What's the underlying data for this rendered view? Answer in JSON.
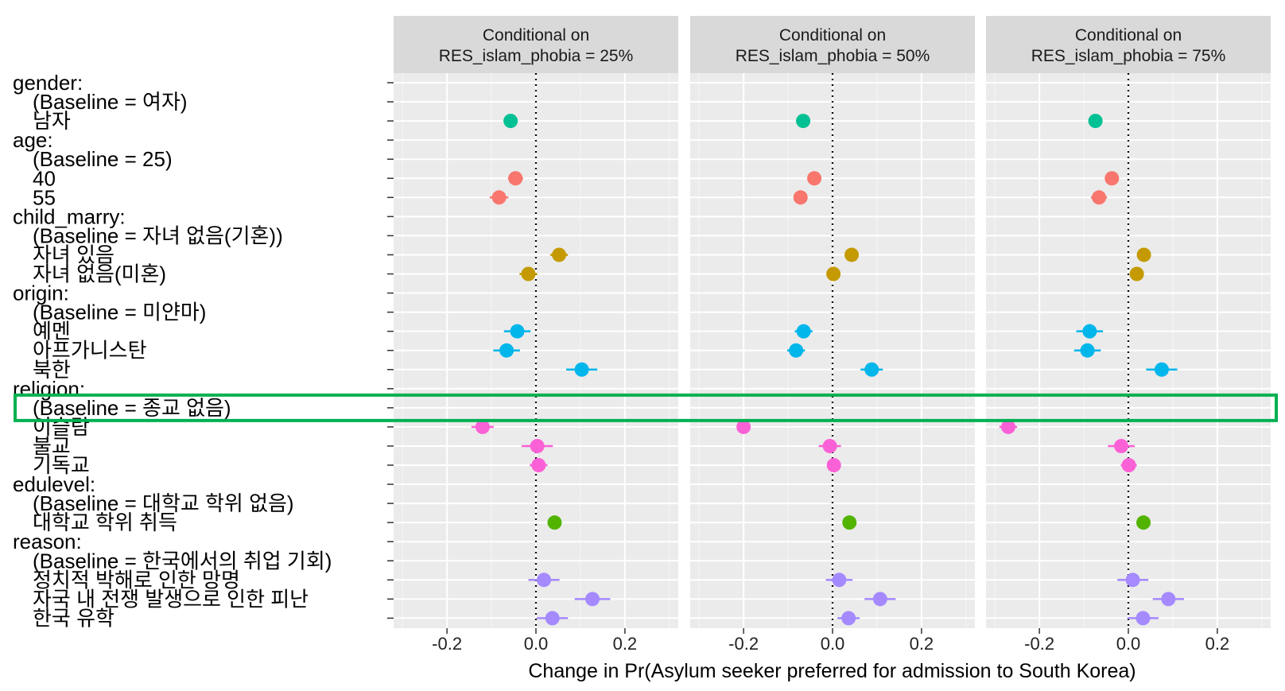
{
  "chart_data": {
    "type": "scatter",
    "x_title": "Change in Pr(Asylum seeker preferred for admission to South Korea)",
    "x_range": [
      -0.32,
      0.32
    ],
    "x_ticks": [
      {
        "value": -0.2,
        "label": "-0.2"
      },
      {
        "value": 0.0,
        "label": "0.0"
      },
      {
        "value": 0.2,
        "label": "0.2"
      }
    ],
    "reference_line": 0,
    "highlight_row": 17,
    "highlight_color": "#00b050",
    "rows": [
      {
        "label": "gender:",
        "indent": false
      },
      {
        "label": "(Baseline = 여자)",
        "indent": true
      },
      {
        "label": "남자",
        "indent": true,
        "group": "gender"
      },
      {
        "label": "age:",
        "indent": false
      },
      {
        "label": "(Baseline = 25)",
        "indent": true
      },
      {
        "label": "40",
        "indent": true,
        "group": "age"
      },
      {
        "label": "55",
        "indent": true,
        "group": "age"
      },
      {
        "label": "child_marry:",
        "indent": false
      },
      {
        "label": "(Baseline = 자녀 없음(기혼))",
        "indent": true
      },
      {
        "label": "자녀 있음",
        "indent": true,
        "group": "child_marry"
      },
      {
        "label": "자녀 없음(미혼)",
        "indent": true,
        "group": "child_marry"
      },
      {
        "label": "origin:",
        "indent": false
      },
      {
        "label": "(Baseline = 미얀마)",
        "indent": true
      },
      {
        "label": "예멘",
        "indent": true,
        "group": "origin"
      },
      {
        "label": "아프가니스탄",
        "indent": true,
        "group": "origin"
      },
      {
        "label": "북한",
        "indent": true,
        "group": "origin"
      },
      {
        "label": "religion:",
        "indent": false
      },
      {
        "label": "(Baseline = 종교 없음)",
        "indent": true
      },
      {
        "label": "이슬람",
        "indent": true,
        "group": "religion"
      },
      {
        "label": "불교",
        "indent": true,
        "group": "religion"
      },
      {
        "label": "기독교",
        "indent": true,
        "group": "religion"
      },
      {
        "label": "edulevel:",
        "indent": false
      },
      {
        "label": "(Baseline = 대학교 학위 없음)",
        "indent": true
      },
      {
        "label": "대학교 학위 취득",
        "indent": true,
        "group": "edulevel"
      },
      {
        "label": "reason:",
        "indent": false
      },
      {
        "label": "(Baseline = 한국에서의 취업 기회)",
        "indent": true
      },
      {
        "label": "정치적 박해로 인한 망명",
        "indent": true,
        "group": "reason"
      },
      {
        "label": "자국 내 전쟁 발생으로 인한 피난",
        "indent": true,
        "group": "reason"
      },
      {
        "label": "한국 유학",
        "indent": true,
        "group": "reason"
      }
    ],
    "group_colors": {
      "gender": "#00c094",
      "age": "#f8766d",
      "child_marry": "#c49a00",
      "origin": "#00b6eb",
      "religion": "#fb61d7",
      "edulevel": "#53b400",
      "reason": "#a58aff"
    },
    "facets": [
      {
        "title_line1": "Conditional on",
        "title_line2": "RES_islam_phobia = 25%",
        "points": [
          {
            "row": 2,
            "estimate": -0.057,
            "lower": -0.065,
            "upper": -0.049
          },
          {
            "row": 5,
            "estimate": -0.046,
            "lower": -0.063,
            "upper": -0.029
          },
          {
            "row": 6,
            "estimate": -0.083,
            "lower": -0.104,
            "upper": -0.062
          },
          {
            "row": 9,
            "estimate": 0.052,
            "lower": 0.032,
            "upper": 0.072
          },
          {
            "row": 10,
            "estimate": -0.017,
            "lower": -0.037,
            "upper": 0.003
          },
          {
            "row": 13,
            "estimate": -0.042,
            "lower": -0.072,
            "upper": -0.012
          },
          {
            "row": 14,
            "estimate": -0.066,
            "lower": -0.096,
            "upper": -0.036
          },
          {
            "row": 15,
            "estimate": 0.103,
            "lower": 0.068,
            "upper": 0.138
          },
          {
            "row": 18,
            "estimate": -0.12,
            "lower": -0.145,
            "upper": -0.095
          },
          {
            "row": 19,
            "estimate": 0.003,
            "lower": -0.032,
            "upper": 0.038
          },
          {
            "row": 20,
            "estimate": 0.006,
            "lower": -0.014,
            "upper": 0.026
          },
          {
            "row": 23,
            "estimate": 0.042,
            "lower": 0.032,
            "upper": 0.052
          },
          {
            "row": 26,
            "estimate": 0.018,
            "lower": -0.017,
            "upper": 0.053
          },
          {
            "row": 27,
            "estimate": 0.127,
            "lower": 0.087,
            "upper": 0.167
          },
          {
            "row": 28,
            "estimate": 0.037,
            "lower": 0.002,
            "upper": 0.072
          }
        ]
      },
      {
        "title_line1": "Conditional on",
        "title_line2": "RES_islam_phobia = 50%",
        "points": [
          {
            "row": 2,
            "estimate": -0.066,
            "lower": -0.074,
            "upper": -0.058
          },
          {
            "row": 5,
            "estimate": -0.041,
            "lower": -0.053,
            "upper": -0.029
          },
          {
            "row": 6,
            "estimate": -0.072,
            "lower": -0.087,
            "upper": -0.057
          },
          {
            "row": 9,
            "estimate": 0.043,
            "lower": 0.033,
            "upper": 0.053
          },
          {
            "row": 10,
            "estimate": 0.002,
            "lower": -0.013,
            "upper": 0.017
          },
          {
            "row": 13,
            "estimate": -0.065,
            "lower": -0.085,
            "upper": -0.045
          },
          {
            "row": 14,
            "estimate": -0.082,
            "lower": -0.102,
            "upper": -0.062
          },
          {
            "row": 15,
            "estimate": 0.088,
            "lower": 0.063,
            "upper": 0.113
          },
          {
            "row": 18,
            "estimate": -0.2,
            "lower": -0.215,
            "upper": -0.185
          },
          {
            "row": 19,
            "estimate": -0.006,
            "lower": -0.031,
            "upper": 0.019
          },
          {
            "row": 20,
            "estimate": 0.003,
            "lower": -0.009,
            "upper": 0.015
          },
          {
            "row": 23,
            "estimate": 0.038,
            "lower": 0.03,
            "upper": 0.046
          },
          {
            "row": 26,
            "estimate": 0.015,
            "lower": -0.015,
            "upper": 0.045
          },
          {
            "row": 27,
            "estimate": 0.107,
            "lower": 0.072,
            "upper": 0.142
          },
          {
            "row": 28,
            "estimate": 0.036,
            "lower": 0.011,
            "upper": 0.061
          }
        ]
      },
      {
        "title_line1": "Conditional on",
        "title_line2": "RES_islam_phobia = 75%",
        "points": [
          {
            "row": 2,
            "estimate": -0.074,
            "lower": -0.082,
            "upper": -0.066
          },
          {
            "row": 5,
            "estimate": -0.037,
            "lower": -0.052,
            "upper": -0.022
          },
          {
            "row": 6,
            "estimate": -0.066,
            "lower": -0.084,
            "upper": -0.048
          },
          {
            "row": 9,
            "estimate": 0.035,
            "lower": 0.023,
            "upper": 0.047
          },
          {
            "row": 10,
            "estimate": 0.019,
            "lower": 0.005,
            "upper": 0.033
          },
          {
            "row": 13,
            "estimate": -0.087,
            "lower": -0.117,
            "upper": -0.057
          },
          {
            "row": 14,
            "estimate": -0.092,
            "lower": -0.122,
            "upper": -0.062
          },
          {
            "row": 15,
            "estimate": 0.075,
            "lower": 0.04,
            "upper": 0.11
          },
          {
            "row": 18,
            "estimate": -0.27,
            "lower": -0.29,
            "upper": -0.25
          },
          {
            "row": 19,
            "estimate": -0.016,
            "lower": -0.046,
            "upper": 0.014
          },
          {
            "row": 20,
            "estimate": 0.001,
            "lower": -0.017,
            "upper": 0.019
          },
          {
            "row": 23,
            "estimate": 0.034,
            "lower": 0.026,
            "upper": 0.042
          },
          {
            "row": 26,
            "estimate": 0.01,
            "lower": -0.025,
            "upper": 0.045
          },
          {
            "row": 27,
            "estimate": 0.09,
            "lower": 0.055,
            "upper": 0.125
          },
          {
            "row": 28,
            "estimate": 0.033,
            "lower": -0.002,
            "upper": 0.068
          }
        ]
      }
    ]
  }
}
